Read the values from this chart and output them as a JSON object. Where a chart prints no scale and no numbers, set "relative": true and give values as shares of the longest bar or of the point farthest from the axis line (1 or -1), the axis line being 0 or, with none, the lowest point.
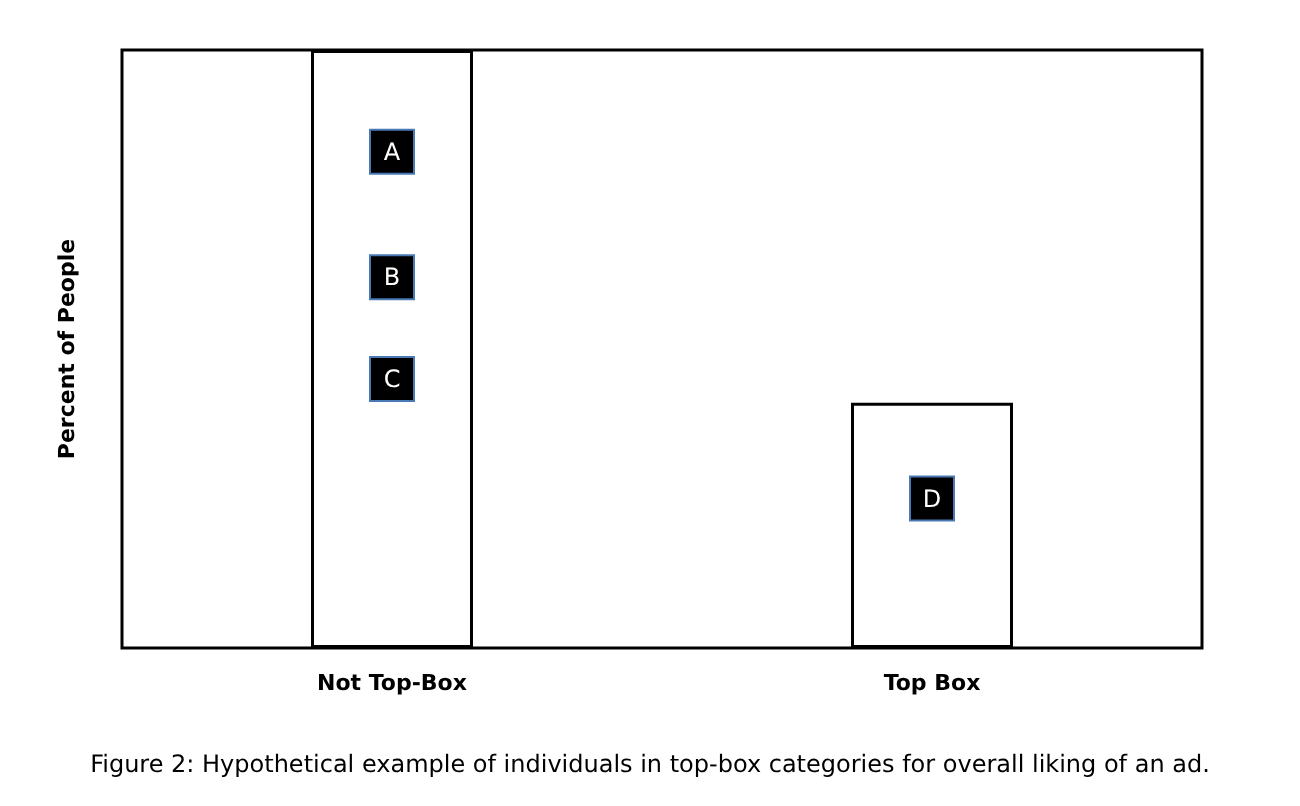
{
  "chart_data": {
    "type": "bar",
    "relative": true,
    "ylabel": "Percent of People",
    "categories": [
      "Not Top-Box",
      "Top Box"
    ],
    "values": [
      1,
      0.41
    ],
    "color": "#ffffff",
    "annotations": [
      {
        "text": "A",
        "x": "Not Top-Box",
        "y": 0.83
      },
      {
        "text": "B",
        "x": "Not Top-Box",
        "y": 0.62
      },
      {
        "text": "C",
        "x": "Not Top-Box",
        "y": 0.45
      },
      {
        "text": "D",
        "x": "Top Box",
        "y": 0.25
      },
      "Figure 2: Hypothetical example of individuals in top-box categories for overall liking of an ad."
    ]
  }
}
